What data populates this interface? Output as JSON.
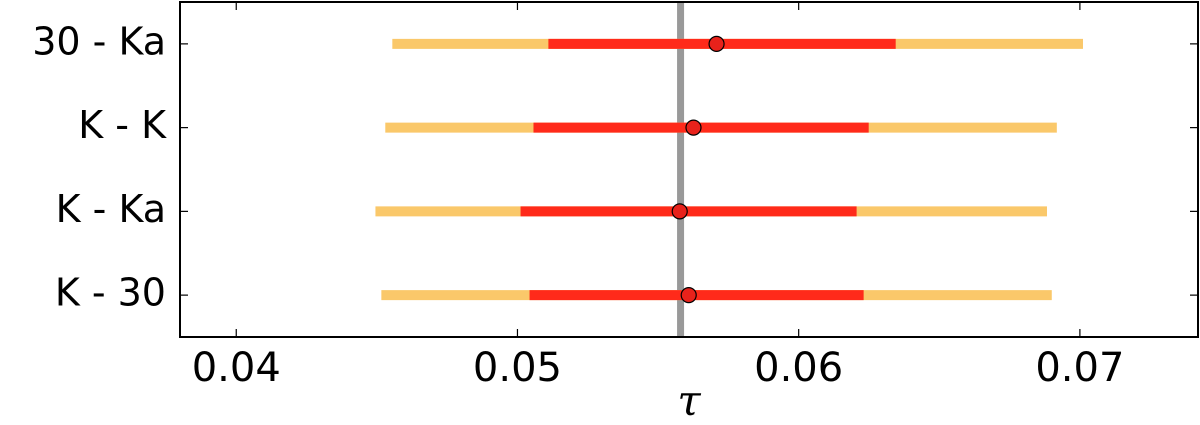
{
  "chart_data": {
    "type": "interval",
    "xlabel": "τ",
    "categories": [
      "30 - Ka",
      "K - K",
      "K - Ka",
      "K - 30"
    ],
    "values": [
      0.05708,
      0.05626,
      0.05577,
      0.05609
    ],
    "inner": [
      [
        0.0511,
        0.06345
      ],
      [
        0.05057,
        0.06249
      ],
      [
        0.05011,
        0.06206
      ],
      [
        0.05043,
        0.06231
      ]
    ],
    "outer": [
      [
        0.04555,
        0.07011
      ],
      [
        0.0453,
        0.06918
      ],
      [
        0.04495,
        0.06883
      ],
      [
        0.04516,
        0.069
      ]
    ],
    "reference": 0.0558,
    "point_color": "#e8221b",
    "inner_color": "#ff2a1a",
    "outer_color": "#fac86a",
    "reference_color": "#999999",
    "xlim": [
      0.038,
      0.0742
    ],
    "xticks": [
      0.04,
      0.05,
      0.06,
      0.07
    ]
  }
}
